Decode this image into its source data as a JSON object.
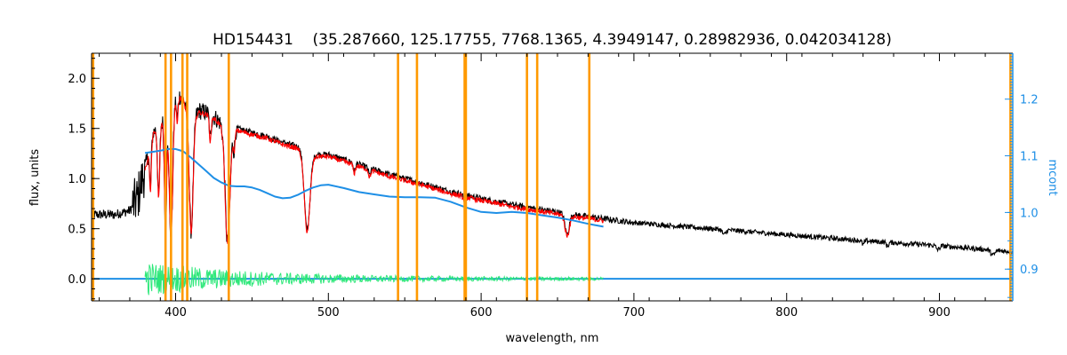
{
  "chart_data": {
    "type": "line",
    "title": "HD154431    (35.287660, 125.17755, 7768.1365, 4.3949147, 0.28982936, 0.042034128)",
    "xlabel": "wavelength, nm",
    "ylabel": "flux, units",
    "y2label": "mcont",
    "xlim": [
      345,
      948
    ],
    "ylim": [
      -0.22,
      2.25
    ],
    "y2lim": [
      0.844,
      1.281
    ],
    "x_ticks": [
      400,
      500,
      600,
      700,
      800,
      900
    ],
    "y_ticks": [
      0.0,
      0.5,
      1.0,
      1.5,
      2.0
    ],
    "y_tick_labels": [
      "0.0",
      "0.5",
      "1.0",
      "1.5",
      "2.0"
    ],
    "y2_ticks": [
      0.9,
      1.0,
      1.1,
      1.2
    ],
    "y2_tick_labels": [
      "0.9",
      "1.0",
      "1.1",
      "1.2"
    ],
    "grid": false,
    "colors": {
      "observed": "#000000",
      "model": "#ff0000",
      "continuum": "#1e8fe6",
      "residual": "#2ee87a",
      "marker_lines": "#ff9900"
    },
    "vertical_lines_x": [
      346,
      393.4,
      397.0,
      404.5,
      407.6,
      434.8,
      545.6,
      558.0,
      589.2,
      590.0,
      630.0,
      636.7,
      670.8,
      946.5
    ],
    "continuum": {
      "axis": "right",
      "x": [
        380,
        385,
        390,
        395,
        400,
        405,
        410,
        415,
        420,
        425,
        430,
        435,
        440,
        445,
        450,
        455,
        460,
        465,
        470,
        475,
        480,
        485,
        490,
        495,
        500,
        510,
        520,
        530,
        540,
        550,
        560,
        570,
        580,
        590,
        600,
        610,
        620,
        630,
        640,
        650,
        660,
        670,
        680
      ],
      "y": [
        1.105,
        1.107,
        1.109,
        1.112,
        1.112,
        1.108,
        1.097,
        1.085,
        1.073,
        1.061,
        1.053,
        1.047,
        1.046,
        1.046,
        1.044,
        1.04,
        1.034,
        1.028,
        1.025,
        1.026,
        1.031,
        1.038,
        1.044,
        1.048,
        1.049,
        1.043,
        1.036,
        1.032,
        1.028,
        1.027,
        1.027,
        1.026,
        1.019,
        1.009,
        1.001,
        0.999,
        1.001,
        0.999,
        0.995,
        0.991,
        0.986,
        0.98,
        0.975
      ]
    },
    "continuum_flat": {
      "axis": "left",
      "x": [
        345,
        948
      ],
      "y": [
        0.0,
        0.0
      ]
    },
    "observed_envelope": {
      "x": [
        345,
        360,
        370,
        375,
        380,
        385,
        390,
        395,
        400,
        405,
        410,
        415,
        420,
        425,
        430,
        435,
        440,
        450,
        460,
        470,
        480,
        490,
        500,
        520,
        540,
        560,
        580,
        600,
        620,
        640,
        660,
        680,
        700,
        750,
        800,
        850,
        900,
        948
      ],
      "y": [
        0.64,
        0.64,
        0.68,
        0.8,
        1.1,
        1.45,
        1.55,
        1.65,
        1.85,
        1.8,
        1.58,
        1.68,
        1.66,
        1.62,
        1.55,
        1.5,
        1.5,
        1.46,
        1.42,
        1.36,
        1.32,
        1.24,
        1.24,
        1.14,
        1.04,
        0.96,
        0.87,
        0.8,
        0.74,
        0.69,
        0.64,
        0.6,
        0.56,
        0.5,
        0.44,
        0.38,
        0.33,
        0.27
      ]
    },
    "absorption_lines": [
      {
        "x": 383.5,
        "depth": 0.45,
        "w": 0.8
      },
      {
        "x": 388.9,
        "depth": 0.7,
        "w": 1.0
      },
      {
        "x": 393.4,
        "depth": 1.1,
        "w": 1.0
      },
      {
        "x": 397.0,
        "depth": 1.3,
        "w": 1.6
      },
      {
        "x": 401.0,
        "depth": 0.25,
        "w": 0.8
      },
      {
        "x": 410.2,
        "depth": 1.1,
        "w": 1.8
      },
      {
        "x": 422.7,
        "depth": 0.25,
        "w": 0.8
      },
      {
        "x": 434.0,
        "depth": 1.15,
        "w": 2.2
      },
      {
        "x": 438.3,
        "depth": 0.2,
        "w": 0.8
      },
      {
        "x": 486.1,
        "depth": 0.78,
        "w": 2.6
      },
      {
        "x": 517.0,
        "depth": 0.08,
        "w": 1.0
      },
      {
        "x": 527.0,
        "depth": 0.07,
        "w": 1.0
      },
      {
        "x": 589.3,
        "depth": 0.08,
        "w": 1.0
      },
      {
        "x": 656.3,
        "depth": 0.2,
        "w": 2.0
      },
      {
        "x": 759.0,
        "depth": 0.05,
        "w": 1.5
      },
      {
        "x": 850.0,
        "depth": 0.04,
        "w": 1.0
      },
      {
        "x": 866.0,
        "depth": 0.04,
        "w": 1.0
      },
      {
        "x": 899.0,
        "depth": 0.04,
        "w": 1.5
      },
      {
        "x": 935.0,
        "depth": 0.05,
        "w": 2.0
      }
    ],
    "model_range": [
      380,
      680
    ],
    "residual": {
      "x_range": [
        380,
        680
      ],
      "amplitude_start": 0.16,
      "amplitude_end": 0.015
    }
  }
}
